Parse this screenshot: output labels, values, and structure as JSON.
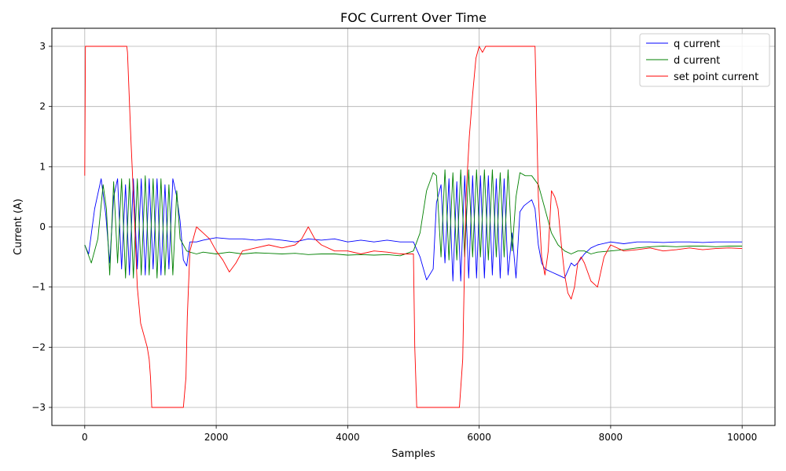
{
  "chart_data": {
    "type": "line",
    "title": "FOC Current Over Time",
    "xlabel": "Samples",
    "ylabel": "Current (A)",
    "xlim": [
      -500,
      10500
    ],
    "ylim": [
      -3.3,
      3.3
    ],
    "xticks": [
      0,
      2000,
      4000,
      6000,
      8000,
      10000
    ],
    "yticks": [
      -3,
      -2,
      -1,
      0,
      1,
      2,
      3
    ],
    "ytick_labels": [
      "−3",
      "−2",
      "−1",
      "0",
      "1",
      "2",
      "3"
    ],
    "grid": true,
    "legend_position": "top-right",
    "series": [
      {
        "name": "q current",
        "color": "#0000ff",
        "x": [
          0,
          60,
          150,
          250,
          320,
          380,
          440,
          500,
          560,
          620,
          680,
          740,
          800,
          860,
          920,
          980,
          1040,
          1100,
          1160,
          1220,
          1280,
          1340,
          1400,
          1450,
          1500,
          1550,
          1600,
          1700,
          1800,
          1900,
          2000,
          2200,
          2400,
          2600,
          2800,
          3000,
          3200,
          3400,
          3600,
          3800,
          4000,
          4200,
          4400,
          4600,
          4800,
          5000,
          5100,
          5200,
          5300,
          5350,
          5420,
          5480,
          5540,
          5600,
          5660,
          5720,
          5780,
          5840,
          5900,
          5960,
          6020,
          6080,
          6140,
          6200,
          6260,
          6320,
          6380,
          6440,
          6500,
          6560,
          6620,
          6680,
          6740,
          6800,
          6850,
          6900,
          6950,
          7000,
          7100,
          7200,
          7300,
          7400,
          7450,
          7500,
          7600,
          7700,
          7800,
          8000,
          8200,
          8400,
          8600,
          8800,
          9000,
          9200,
          9400,
          9600,
          9800,
          10000
        ],
        "y": [
          -0.3,
          -0.45,
          0.3,
          0.8,
          0.2,
          -0.6,
          0.5,
          0.8,
          -0.7,
          0.7,
          -0.8,
          0.8,
          -0.7,
          0.8,
          -0.8,
          0.8,
          -0.7,
          0.8,
          -0.8,
          0.7,
          -0.7,
          0.8,
          0.5,
          0.1,
          -0.55,
          -0.65,
          -0.25,
          -0.25,
          -0.22,
          -0.2,
          -0.18,
          -0.2,
          -0.2,
          -0.22,
          -0.2,
          -0.22,
          -0.25,
          -0.2,
          -0.22,
          -0.2,
          -0.25,
          -0.22,
          -0.25,
          -0.22,
          -0.25,
          -0.25,
          -0.5,
          -0.88,
          -0.7,
          0.4,
          0.7,
          -0.6,
          0.8,
          -0.9,
          0.75,
          -0.9,
          0.85,
          -0.85,
          0.85,
          -0.85,
          0.85,
          -0.85,
          0.85,
          -0.8,
          0.8,
          -0.85,
          0.8,
          -0.8,
          -0.1,
          -0.85,
          0.25,
          0.35,
          0.4,
          0.45,
          0.3,
          -0.3,
          -0.6,
          -0.7,
          -0.75,
          -0.8,
          -0.85,
          -0.6,
          -0.65,
          -0.6,
          -0.45,
          -0.35,
          -0.3,
          -0.25,
          -0.28,
          -0.25,
          -0.25,
          -0.26,
          -0.25,
          -0.25,
          -0.26,
          -0.25,
          -0.25,
          -0.25
        ]
      },
      {
        "name": "d current",
        "color": "#008000",
        "x": [
          0,
          100,
          200,
          280,
          330,
          380,
          440,
          500,
          560,
          620,
          680,
          740,
          800,
          860,
          920,
          980,
          1040,
          1100,
          1160,
          1220,
          1280,
          1340,
          1400,
          1450,
          1500,
          1550,
          1600,
          1700,
          1800,
          2000,
          2200,
          2400,
          2600,
          2800,
          3000,
          3200,
          3400,
          3600,
          3800,
          4000,
          4200,
          4400,
          4600,
          4800,
          5000,
          5100,
          5200,
          5300,
          5350,
          5420,
          5480,
          5540,
          5600,
          5660,
          5720,
          5780,
          5840,
          5900,
          5960,
          6020,
          6080,
          6140,
          6200,
          6260,
          6320,
          6380,
          6440,
          6500,
          6560,
          6620,
          6700,
          6800,
          6900,
          7000,
          7100,
          7200,
          7300,
          7400,
          7500,
          7600,
          7700,
          7800,
          8000,
          8200,
          8400,
          8600,
          8800,
          9000,
          9200,
          9400,
          9600,
          9800,
          10000
        ],
        "y": [
          -0.3,
          -0.6,
          -0.2,
          0.7,
          0.3,
          -0.8,
          0.75,
          -0.6,
          0.8,
          -0.85,
          0.8,
          -0.85,
          0.8,
          -0.8,
          0.85,
          -0.8,
          0.8,
          -0.85,
          0.8,
          -0.8,
          0.7,
          -0.8,
          0.6,
          -0.2,
          -0.3,
          -0.4,
          -0.42,
          -0.45,
          -0.42,
          -0.45,
          -0.42,
          -0.45,
          -0.43,
          -0.44,
          -0.45,
          -0.44,
          -0.46,
          -0.45,
          -0.45,
          -0.47,
          -0.46,
          -0.47,
          -0.46,
          -0.48,
          -0.4,
          -0.1,
          0.6,
          0.9,
          0.85,
          -0.5,
          0.95,
          -0.55,
          0.9,
          -0.55,
          0.95,
          -0.5,
          0.95,
          -0.5,
          0.95,
          -0.5,
          0.95,
          -0.55,
          0.95,
          -0.5,
          0.9,
          -0.5,
          0.95,
          -0.4,
          0.5,
          0.9,
          0.85,
          0.85,
          0.7,
          0.3,
          -0.1,
          -0.3,
          -0.4,
          -0.45,
          -0.4,
          -0.4,
          -0.45,
          -0.42,
          -0.4,
          -0.38,
          -0.35,
          -0.33,
          -0.32,
          -0.33,
          -0.32,
          -0.32,
          -0.33,
          -0.32,
          -0.32
        ]
      },
      {
        "name": "set point current",
        "color": "#ff0000",
        "x": [
          0,
          10,
          30,
          100,
          640,
          650,
          700,
          750,
          800,
          850,
          900,
          950,
          980,
          1000,
          1020,
          1500,
          1540,
          1560,
          1600,
          1700,
          1800,
          1900,
          2000,
          2100,
          2200,
          2300,
          2400,
          2600,
          2800,
          3000,
          3200,
          3300,
          3400,
          3500,
          3600,
          3800,
          4000,
          4200,
          4400,
          4600,
          4800,
          5000,
          5020,
          5050,
          5700,
          5750,
          5780,
          5800,
          5850,
          5900,
          5950,
          6000,
          6050,
          6100,
          6850,
          6860,
          6900,
          6950,
          7000,
          7050,
          7100,
          7150,
          7200,
          7250,
          7300,
          7350,
          7400,
          7450,
          7500,
          7550,
          7600,
          7700,
          7800,
          7900,
          8000,
          8200,
          8400,
          8600,
          8800,
          9000,
          9200,
          9400,
          9600,
          9800,
          10000
        ],
        "y": [
          0.85,
          3,
          3,
          3,
          3,
          2.9,
          1.5,
          0.3,
          -1,
          -1.6,
          -1.8,
          -2,
          -2.2,
          -2.5,
          -3,
          -3,
          -2.5,
          -1.5,
          -0.4,
          0,
          -0.1,
          -0.2,
          -0.4,
          -0.55,
          -0.75,
          -0.6,
          -0.4,
          -0.35,
          -0.3,
          -0.35,
          -0.3,
          -0.2,
          0,
          -0.2,
          -0.3,
          -0.4,
          -0.4,
          -0.45,
          -0.4,
          -0.42,
          -0.45,
          -0.45,
          -2,
          -3,
          -3,
          -2.2,
          -0.5,
          0.5,
          1.5,
          2.2,
          2.8,
          3,
          2.9,
          3,
          3,
          2.5,
          0.5,
          -0.5,
          -0.8,
          -0.4,
          0.6,
          0.5,
          0.3,
          -0.3,
          -0.8,
          -1.1,
          -1.2,
          -1,
          -0.6,
          -0.5,
          -0.6,
          -0.9,
          -1,
          -0.5,
          -0.3,
          -0.4,
          -0.38,
          -0.35,
          -0.4,
          -0.38,
          -0.35,
          -0.38,
          -0.36,
          -0.35,
          -0.36
        ]
      }
    ]
  }
}
